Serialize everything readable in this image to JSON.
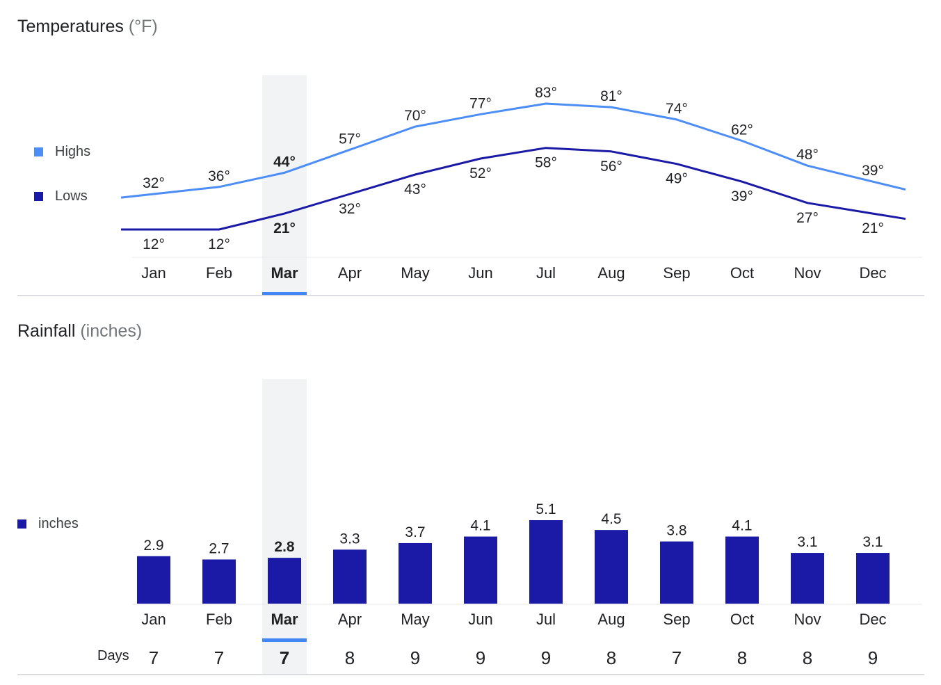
{
  "temperature_section": {
    "title": "Temperatures",
    "unit": "(°F)",
    "legend": [
      {
        "label": "Highs",
        "color": "#4c8df6"
      },
      {
        "label": "Lows",
        "color": "#1a1aa6"
      }
    ],
    "selected_month": "Mar"
  },
  "rainfall_section": {
    "title": "Rainfall",
    "unit": "(inches)",
    "legend": [
      {
        "label": "inches",
        "color": "#1a1aa6"
      }
    ],
    "days_label": "Days",
    "selected_month": "Mar"
  },
  "chart_data": [
    {
      "type": "line",
      "title": "Temperatures (°F)",
      "categories": [
        "Jan",
        "Feb",
        "Mar",
        "Apr",
        "May",
        "Jun",
        "Jul",
        "Aug",
        "Sep",
        "Oct",
        "Nov",
        "Dec"
      ],
      "series": [
        {
          "name": "Highs",
          "color": "#4c8df6",
          "values": [
            32,
            36,
            44,
            57,
            70,
            77,
            83,
            81,
            74,
            62,
            48,
            39
          ],
          "labels": [
            "32°",
            "36°",
            "44°",
            "57°",
            "70°",
            "77°",
            "83°",
            "81°",
            "74°",
            "62°",
            "48°",
            "39°"
          ]
        },
        {
          "name": "Lows",
          "color": "#1a1aa6",
          "values": [
            12,
            12,
            21,
            32,
            43,
            52,
            58,
            56,
            49,
            39,
            27,
            21
          ],
          "labels": [
            "12°",
            "12°",
            "21°",
            "32°",
            "43°",
            "52°",
            "58°",
            "56°",
            "49°",
            "39°",
            "27°",
            "21°"
          ]
        }
      ],
      "highlight": "Mar",
      "grid": false
    },
    {
      "type": "bar",
      "title": "Rainfall (inches)",
      "categories": [
        "Jan",
        "Feb",
        "Mar",
        "Apr",
        "May",
        "Jun",
        "Jul",
        "Aug",
        "Sep",
        "Oct",
        "Nov",
        "Dec"
      ],
      "series": [
        {
          "name": "inches",
          "color": "#1a1aa6",
          "values": [
            2.9,
            2.7,
            2.8,
            3.3,
            3.7,
            4.1,
            5.1,
            4.5,
            3.8,
            4.1,
            3.1,
            3.1
          ],
          "labels": [
            "2.9",
            "2.7",
            "2.8",
            "3.3",
            "3.7",
            "4.1",
            "5.1",
            "4.5",
            "3.8",
            "4.1",
            "3.1",
            "3.1"
          ]
        }
      ],
      "days": [
        "7",
        "7",
        "7",
        "8",
        "9",
        "9",
        "9",
        "8",
        "7",
        "8",
        "8",
        "9"
      ],
      "highlight": "Mar",
      "grid": false
    }
  ]
}
